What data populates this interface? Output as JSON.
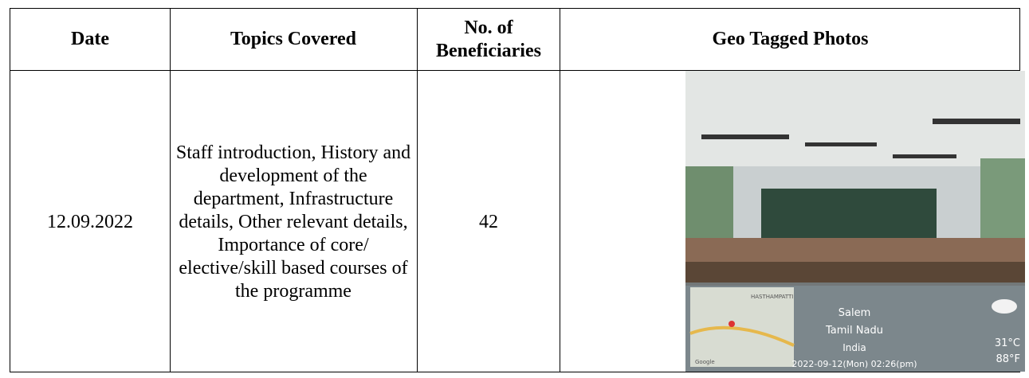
{
  "table": {
    "header": [
      "Date",
      "Topics Covered",
      "No. of Beneficiaries",
      "Geo Tagged Photos"
    ],
    "rows": [
      [
        "12.09.2022",
        "Staff introduction, History and development of the department, Infrastructure details, Other relevant details, Importance of core/ elective/skill based courses of the programme",
        "42"
      ]
    ]
  },
  "photo_overlay": {
    "map_label": "HASTHAMPATTI",
    "city": "Salem",
    "state": "Tamil Nadu",
    "country": "India",
    "temp_c": "31°C",
    "temp_f": "88°F",
    "timestamp": "2022-09-12(Mon) 02:26(pm)",
    "map_brand": "Google"
  }
}
